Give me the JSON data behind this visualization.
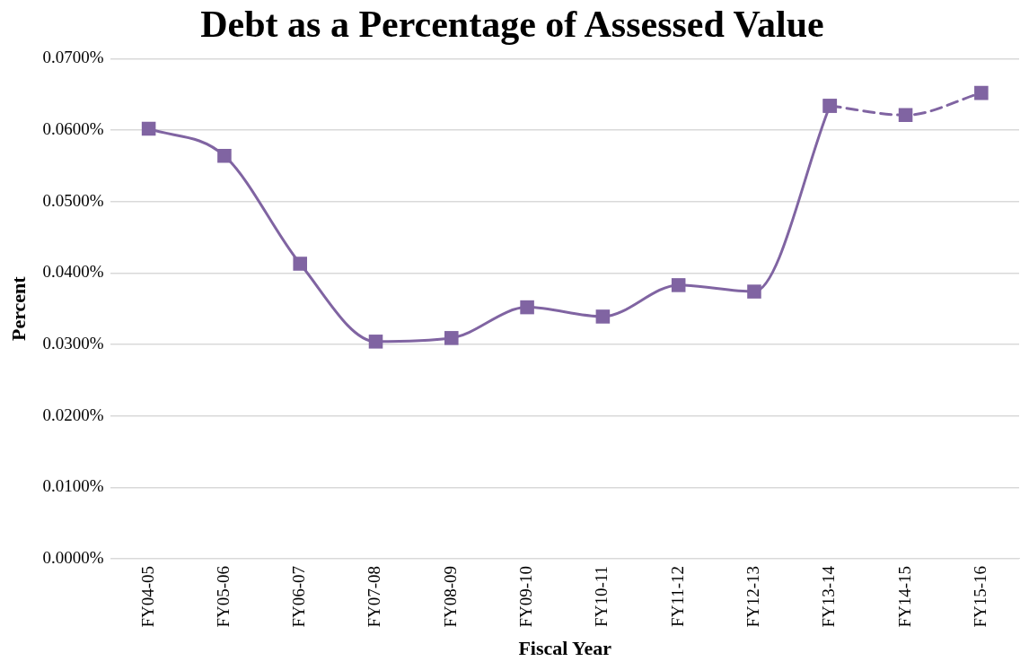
{
  "chart_data": {
    "type": "line",
    "title": "Debt as a Percentage of Assessed Value",
    "xlabel": "Fiscal Year",
    "ylabel": "Percent",
    "categories": [
      "FY04-05",
      "FY05-06",
      "FY06-07",
      "FY07-08",
      "FY08-09",
      "FY09-10",
      "FY10-11",
      "FY11-12",
      "FY12-13",
      "FY13-14",
      "FY14-15",
      "FY15-16"
    ],
    "series": [
      {
        "color": "#8064a2",
        "line_style": "solid",
        "values": [
          0.0602,
          0.0564,
          0.0413,
          0.0304,
          0.0309,
          0.0352,
          0.0339,
          0.0383,
          0.0374,
          0.0634,
          null,
          null
        ]
      },
      {
        "color": "#8064a2",
        "line_style": "dashed",
        "values": [
          null,
          null,
          null,
          null,
          null,
          null,
          null,
          null,
          null,
          0.0634,
          0.0621,
          0.0652
        ]
      }
    ],
    "ylim": [
      0,
      0.07
    ],
    "yticks": [
      {
        "value": 0,
        "label": "0.0000%"
      },
      {
        "value": 0.01,
        "label": "0.0100%"
      },
      {
        "value": 0.02,
        "label": "0.0200%"
      },
      {
        "value": 0.03,
        "label": "0.0300%"
      },
      {
        "value": 0.04,
        "label": "0.0400%"
      },
      {
        "value": 0.05,
        "label": "0.0500%"
      },
      {
        "value": 0.06,
        "label": "0.0600%"
      },
      {
        "value": 0.07,
        "label": "0.0700%"
      }
    ],
    "grid": "y",
    "legend": false,
    "marker": "square"
  }
}
